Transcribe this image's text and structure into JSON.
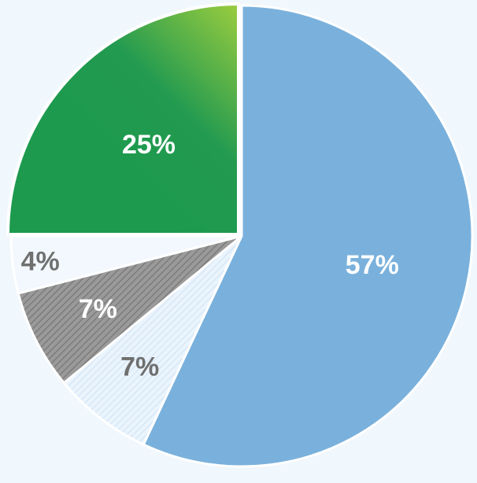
{
  "chart_data": {
    "type": "pie",
    "slices": [
      {
        "value": 57,
        "label": "57%",
        "color": "#7ab1dc",
        "label_color": "#ffffff",
        "pattern": "solid"
      },
      {
        "value": 7,
        "label": "7%",
        "color": "#e9f3fc",
        "label_color": "#6f6f6f",
        "pattern": "light-hatch"
      },
      {
        "value": 7,
        "label": "7%",
        "color": "#8a8a8a",
        "label_color": "#ffffff",
        "pattern": "dark-hatch"
      },
      {
        "value": 4,
        "label": "4%",
        "color": "#f2f8fd",
        "label_color": "#707070",
        "pattern": "solid"
      },
      {
        "value": 25,
        "label": "25%",
        "color": "#1f9b4f",
        "label_color": "#ffffff",
        "pattern": "green-gradient",
        "exploded": true
      }
    ],
    "background_color": "#f0f7fd",
    "title": "",
    "legend": "none"
  }
}
